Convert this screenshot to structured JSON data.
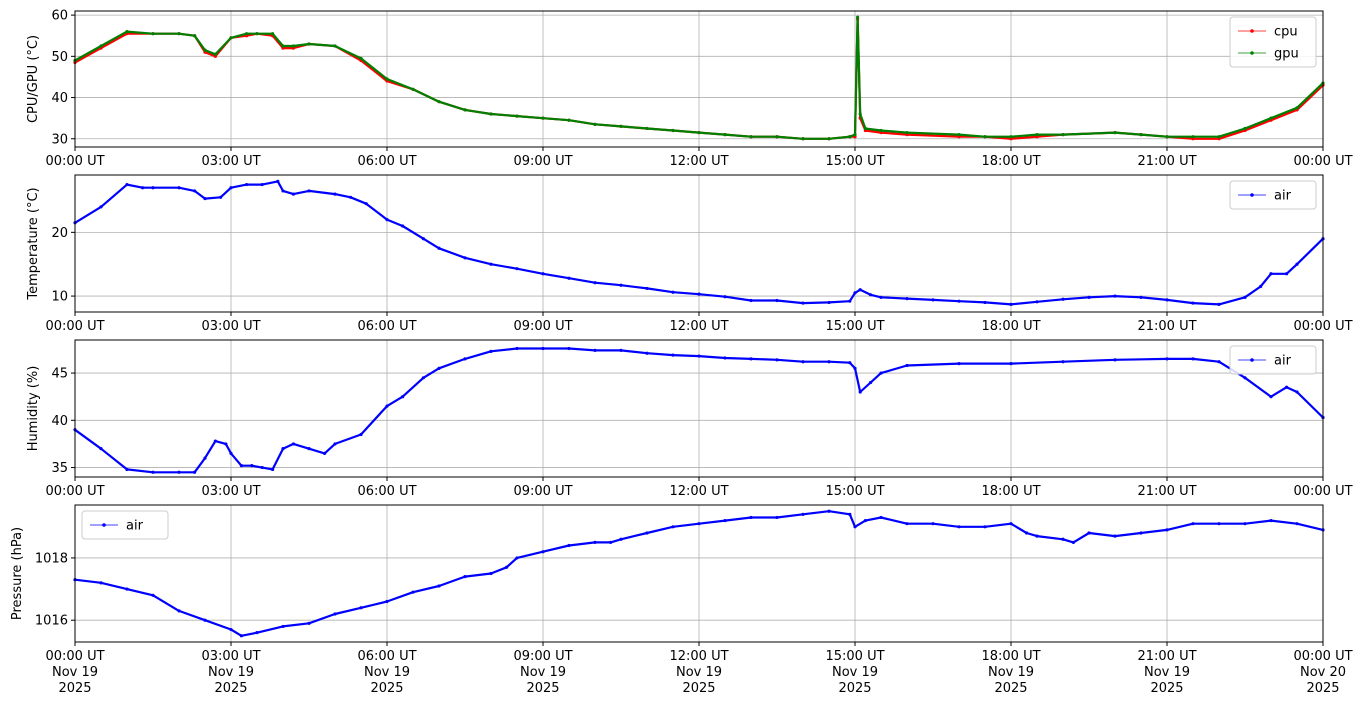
{
  "x_ticks": {
    "times": [
      "00:00 UT",
      "03:00 UT",
      "06:00 UT",
      "09:00 UT",
      "12:00 UT",
      "15:00 UT",
      "18:00 UT",
      "21:00 UT",
      "00:00 UT"
    ],
    "dates": [
      "Nov 19",
      "Nov 19",
      "Nov 19",
      "Nov 19",
      "Nov 19",
      "Nov 19",
      "Nov 19",
      "Nov 19",
      "Nov 20"
    ],
    "years": [
      "2025",
      "2025",
      "2025",
      "2025",
      "2025",
      "2025",
      "2025",
      "2025",
      "2025"
    ]
  },
  "chart_data": [
    {
      "type": "line",
      "ylabel": "CPU/GPU (°C)",
      "ylim": [
        28,
        61
      ],
      "yticks": [
        30,
        40,
        50,
        60
      ],
      "grid": true,
      "legend": "upper right",
      "x_hours": [
        0,
        0.5,
        1,
        1.5,
        2,
        2.3,
        2.5,
        2.7,
        3,
        3.3,
        3.5,
        3.8,
        4,
        4.2,
        4.5,
        5,
        5.5,
        6,
        6.5,
        7,
        7.5,
        8,
        8.5,
        9,
        9.5,
        10,
        10.5,
        11,
        11.5,
        12,
        12.5,
        13,
        13.5,
        14,
        14.5,
        14.9,
        15,
        15.05,
        15.1,
        15.2,
        15.5,
        16,
        17,
        17.5,
        18,
        18.5,
        19,
        20,
        20.5,
        21,
        21.5,
        22,
        22.5,
        23,
        23.5,
        24
      ],
      "series": [
        {
          "name": "cpu",
          "color": "#ff0000",
          "values": [
            48.5,
            52,
            55.5,
            55.5,
            55.5,
            55,
            51,
            50,
            54.5,
            55,
            55.5,
            55,
            52,
            52,
            53,
            52.5,
            49,
            44,
            42,
            39,
            37,
            36,
            35.5,
            35,
            34.5,
            33.5,
            33,
            32.5,
            32,
            31.5,
            31,
            30.5,
            30.5,
            30,
            30,
            30.5,
            30.5,
            59,
            35,
            32,
            31.5,
            31,
            30.5,
            30.5,
            30,
            30.5,
            31,
            31.5,
            31,
            30.5,
            30,
            30,
            32,
            34.5,
            37,
            43
          ]
        },
        {
          "name": "gpu",
          "color": "#008000",
          "values": [
            49,
            52.5,
            56,
            55.5,
            55.5,
            55,
            51.5,
            50.5,
            54.5,
            55.5,
            55.5,
            55.5,
            52.5,
            52.5,
            53,
            52.5,
            49.5,
            44.5,
            42,
            39,
            37,
            36,
            35.5,
            35,
            34.5,
            33.5,
            33,
            32.5,
            32,
            31.5,
            31,
            30.5,
            30.5,
            30,
            30,
            30.5,
            31,
            59.5,
            36,
            32.5,
            32,
            31.5,
            31,
            30.5,
            30.5,
            31,
            31,
            31.5,
            31,
            30.5,
            30.5,
            30.5,
            32.5,
            35,
            37.5,
            43.5
          ]
        }
      ]
    },
    {
      "type": "line",
      "ylabel": "Temperature (°C)",
      "ylim": [
        7.5,
        29
      ],
      "yticks": [
        10,
        20
      ],
      "grid": true,
      "legend": "upper right",
      "x_hours": [
        0,
        0.5,
        1,
        1.3,
        1.5,
        2,
        2.3,
        2.5,
        2.8,
        3,
        3.3,
        3.6,
        3.9,
        4,
        4.2,
        4.5,
        5,
        5.3,
        5.6,
        6,
        6.3,
        6.7,
        7,
        7.5,
        8,
        8.5,
        9,
        9.5,
        10,
        10.5,
        11,
        11.5,
        12,
        12.5,
        13,
        13.5,
        14,
        14.5,
        14.9,
        15,
        15.1,
        15.3,
        15.5,
        16,
        16.5,
        17,
        17.5,
        18,
        18.5,
        19,
        19.5,
        20,
        20.5,
        21,
        21.5,
        22,
        22.5,
        22.8,
        23,
        23.3,
        23.5,
        24
      ],
      "series": [
        {
          "name": "air",
          "color": "#0000ff",
          "values": [
            21.5,
            24,
            27.5,
            27,
            27,
            27,
            26.5,
            25.3,
            25.5,
            27,
            27.5,
            27.5,
            28,
            26.5,
            26,
            26.5,
            26,
            25.5,
            24.5,
            22,
            21,
            19,
            17.5,
            16,
            15,
            14.3,
            13.5,
            12.8,
            12.1,
            11.7,
            11.2,
            10.6,
            10.3,
            9.9,
            9.3,
            9.3,
            8.9,
            9,
            9.2,
            10.5,
            11,
            10.2,
            9.8,
            9.6,
            9.4,
            9.2,
            9.0,
            8.7,
            9.1,
            9.5,
            9.8,
            10,
            9.8,
            9.4,
            8.9,
            8.7,
            9.8,
            11.5,
            13.5,
            13.5,
            15,
            19
          ]
        }
      ]
    },
    {
      "type": "line",
      "ylabel": "Humidity (%)",
      "ylim": [
        34,
        48.5
      ],
      "yticks": [
        35,
        40,
        45
      ],
      "grid": true,
      "legend": "upper right",
      "x_hours": [
        0,
        0.5,
        1,
        1.5,
        2,
        2.3,
        2.5,
        2.7,
        2.9,
        3,
        3.2,
        3.4,
        3.6,
        3.8,
        4,
        4.2,
        4.5,
        4.8,
        5,
        5.5,
        6,
        6.3,
        6.7,
        7,
        7.5,
        8,
        8.5,
        9,
        9.5,
        10,
        10.5,
        11,
        11.5,
        12,
        12.5,
        13,
        13.5,
        14,
        14.5,
        14.9,
        15,
        15.1,
        15.3,
        15.5,
        16,
        17,
        18,
        19,
        20,
        21,
        21.5,
        22,
        22.5,
        23,
        23.3,
        23.5,
        24
      ],
      "series": [
        {
          "name": "air",
          "color": "#0000ff",
          "values": [
            39,
            37,
            34.8,
            34.5,
            34.5,
            34.5,
            36,
            37.8,
            37.5,
            36.5,
            35.2,
            35.2,
            35,
            34.8,
            37,
            37.5,
            37,
            36.5,
            37.5,
            38.5,
            41.5,
            42.5,
            44.5,
            45.5,
            46.5,
            47.3,
            47.6,
            47.6,
            47.6,
            47.4,
            47.4,
            47.1,
            46.9,
            46.8,
            46.6,
            46.5,
            46.4,
            46.2,
            46.2,
            46.1,
            45.5,
            43,
            44,
            45,
            45.8,
            46,
            46,
            46.2,
            46.4,
            46.5,
            46.5,
            46.2,
            44.5,
            42.5,
            43.5,
            43,
            40.3
          ]
        }
      ]
    },
    {
      "type": "line",
      "ylabel": "Pressure (hPa)",
      "ylim": [
        1015.3,
        1019.7
      ],
      "yticks": [
        1016,
        1018
      ],
      "grid": true,
      "legend": "upper left",
      "x_hours": [
        0,
        0.5,
        1,
        1.5,
        2,
        2.5,
        3,
        3.2,
        3.5,
        4,
        4.5,
        5,
        5.5,
        6,
        6.5,
        7,
        7.5,
        8,
        8.3,
        8.5,
        9,
        9.5,
        10,
        10.3,
        10.5,
        11,
        11.5,
        12,
        12.5,
        13,
        13.5,
        14,
        14.5,
        14.9,
        15,
        15.2,
        15.5,
        16,
        16.5,
        17,
        17.5,
        18,
        18.3,
        18.5,
        19,
        19.2,
        19.5,
        20,
        20.5,
        21,
        21.5,
        22,
        22.5,
        23,
        23.5,
        24
      ],
      "series": [
        {
          "name": "air",
          "color": "#0000ff",
          "values": [
            1017.3,
            1017.2,
            1017.0,
            1016.8,
            1016.3,
            1016.0,
            1015.7,
            1015.5,
            1015.6,
            1015.8,
            1015.9,
            1016.2,
            1016.4,
            1016.6,
            1016.9,
            1017.1,
            1017.4,
            1017.5,
            1017.7,
            1018.0,
            1018.2,
            1018.4,
            1018.5,
            1018.5,
            1018.6,
            1018.8,
            1019.0,
            1019.1,
            1019.2,
            1019.3,
            1019.3,
            1019.4,
            1019.5,
            1019.4,
            1019.0,
            1019.2,
            1019.3,
            1019.1,
            1019.1,
            1019.0,
            1019.0,
            1019.1,
            1018.8,
            1018.7,
            1018.6,
            1018.5,
            1018.8,
            1018.7,
            1018.8,
            1018.9,
            1019.1,
            1019.1,
            1019.1,
            1019.2,
            1019.1,
            1018.9
          ]
        }
      ]
    }
  ]
}
